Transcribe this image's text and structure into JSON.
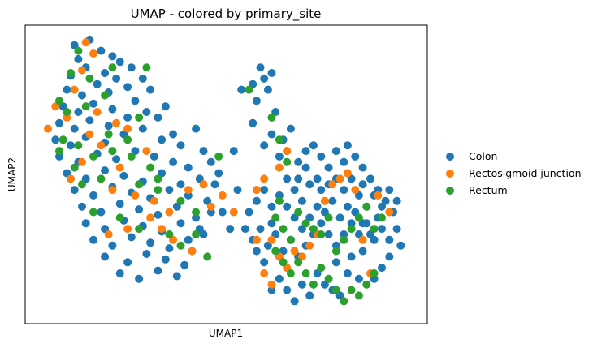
{
  "chart_data": {
    "type": "scatter",
    "title": "UMAP - colored by primary_site",
    "xlabel": "UMAP1",
    "ylabel": "UMAP2",
    "xlim": [
      0,
      100
    ],
    "ylim": [
      0,
      100
    ],
    "grid": false,
    "ticks_shown": false,
    "legend_placement": "right-outside",
    "series": [
      {
        "name": "Colon",
        "color": "#1f77b4",
        "points": [
          [
            10,
            96
          ],
          [
            14,
            98
          ],
          [
            17,
            94
          ],
          [
            11,
            91
          ],
          [
            20,
            92
          ],
          [
            13,
            88
          ],
          [
            18,
            86
          ],
          [
            22,
            90
          ],
          [
            9,
            85
          ],
          [
            16,
            82
          ],
          [
            21,
            84
          ],
          [
            25,
            88
          ],
          [
            8,
            80
          ],
          [
            12,
            78
          ],
          [
            19,
            79
          ],
          [
            24,
            81
          ],
          [
            28,
            84
          ],
          [
            7,
            74
          ],
          [
            11,
            72
          ],
          [
            15,
            75
          ],
          [
            20,
            73
          ],
          [
            26,
            76
          ],
          [
            30,
            80
          ],
          [
            32,
            70
          ],
          [
            6,
            68
          ],
          [
            10,
            66
          ],
          [
            14,
            69
          ],
          [
            19,
            67
          ],
          [
            24,
            70
          ],
          [
            29,
            72
          ],
          [
            34,
            74
          ],
          [
            36,
            64
          ],
          [
            5,
            62
          ],
          [
            9,
            60
          ],
          [
            13,
            63
          ],
          [
            18,
            61
          ],
          [
            23,
            64
          ],
          [
            28,
            66
          ],
          [
            33,
            62
          ],
          [
            38,
            60
          ],
          [
            42,
            66
          ],
          [
            6,
            56
          ],
          [
            11,
            54
          ],
          [
            16,
            57
          ],
          [
            21,
            55
          ],
          [
            26,
            58
          ],
          [
            31,
            56
          ],
          [
            36,
            54
          ],
          [
            40,
            52
          ],
          [
            44,
            58
          ],
          [
            8,
            50
          ],
          [
            13,
            48
          ],
          [
            18,
            51
          ],
          [
            23,
            49
          ],
          [
            28,
            47
          ],
          [
            33,
            50
          ],
          [
            38,
            46
          ],
          [
            43,
            48
          ],
          [
            46,
            54
          ],
          [
            10,
            44
          ],
          [
            15,
            42
          ],
          [
            20,
            45
          ],
          [
            25,
            43
          ],
          [
            30,
            41
          ],
          [
            35,
            44
          ],
          [
            40,
            42
          ],
          [
            45,
            40
          ],
          [
            47,
            46
          ],
          [
            12,
            38
          ],
          [
            17,
            36
          ],
          [
            22,
            39
          ],
          [
            27,
            37
          ],
          [
            32,
            35
          ],
          [
            37,
            38
          ],
          [
            42,
            34
          ],
          [
            13,
            32
          ],
          [
            18,
            30
          ],
          [
            23,
            33
          ],
          [
            28,
            31
          ],
          [
            33,
            29
          ],
          [
            38,
            32
          ],
          [
            43,
            30
          ],
          [
            15,
            26
          ],
          [
            20,
            24
          ],
          [
            25,
            27
          ],
          [
            30,
            25
          ],
          [
            35,
            23
          ],
          [
            40,
            26
          ],
          [
            18,
            20
          ],
          [
            24,
            18
          ],
          [
            29,
            21
          ],
          [
            34,
            19
          ],
          [
            39,
            17
          ],
          [
            22,
            14
          ],
          [
            27,
            12
          ],
          [
            32,
            15
          ],
          [
            37,
            13
          ],
          [
            41,
            22
          ],
          [
            44,
            28
          ],
          [
            46,
            36
          ],
          [
            48,
            50
          ],
          [
            52,
            58
          ],
          [
            53,
            44
          ],
          [
            49,
            36
          ],
          [
            51,
            30
          ],
          [
            54,
            80
          ],
          [
            57,
            82
          ],
          [
            58,
            76
          ],
          [
            59,
            88
          ],
          [
            60,
            84
          ],
          [
            62,
            86
          ],
          [
            61,
            80
          ],
          [
            63,
            72
          ],
          [
            57,
            68
          ],
          [
            60,
            60
          ],
          [
            62,
            64
          ],
          [
            65,
            62
          ],
          [
            67,
            66
          ],
          [
            64,
            56
          ],
          [
            66,
            58
          ],
          [
            69,
            54
          ],
          [
            71,
            58
          ],
          [
            73,
            60
          ],
          [
            75,
            56
          ],
          [
            77,
            52
          ],
          [
            79,
            58
          ],
          [
            81,
            54
          ],
          [
            82,
            60
          ],
          [
            84,
            56
          ],
          [
            86,
            52
          ],
          [
            88,
            48
          ],
          [
            90,
            44
          ],
          [
            92,
            40
          ],
          [
            94,
            36
          ],
          [
            95,
            30
          ],
          [
            96,
            24
          ],
          [
            93,
            20
          ],
          [
            91,
            16
          ],
          [
            89,
            12
          ],
          [
            85,
            12
          ],
          [
            82,
            14
          ],
          [
            79,
            18
          ],
          [
            83,
            20
          ],
          [
            86,
            22
          ],
          [
            88,
            28
          ],
          [
            90,
            34
          ],
          [
            87,
            38
          ],
          [
            85,
            42
          ],
          [
            81,
            44
          ],
          [
            78,
            40
          ],
          [
            75,
            44
          ],
          [
            72,
            46
          ],
          [
            70,
            40
          ],
          [
            68,
            44
          ],
          [
            66,
            48
          ],
          [
            64,
            42
          ],
          [
            62,
            38
          ],
          [
            60,
            44
          ],
          [
            58,
            40
          ],
          [
            56,
            36
          ],
          [
            55,
            30
          ],
          [
            57,
            26
          ],
          [
            59,
            30
          ],
          [
            61,
            24
          ],
          [
            63,
            28
          ],
          [
            65,
            22
          ],
          [
            67,
            26
          ],
          [
            69,
            20
          ],
          [
            71,
            24
          ],
          [
            73,
            28
          ],
          [
            75,
            32
          ],
          [
            77,
            28
          ],
          [
            79,
            24
          ],
          [
            81,
            28
          ],
          [
            83,
            32
          ],
          [
            85,
            28
          ],
          [
            87,
            32
          ],
          [
            89,
            26
          ],
          [
            91,
            30
          ],
          [
            93,
            26
          ],
          [
            68,
            34
          ],
          [
            70,
            30
          ],
          [
            72,
            34
          ],
          [
            74,
            38
          ],
          [
            76,
            36
          ],
          [
            80,
            34
          ],
          [
            82,
            38
          ],
          [
            84,
            36
          ],
          [
            86,
            32
          ],
          [
            64,
            12
          ],
          [
            66,
            8
          ],
          [
            68,
            4
          ],
          [
            62,
            8
          ],
          [
            70,
            10
          ],
          [
            72,
            6
          ],
          [
            74,
            14
          ],
          [
            76,
            10
          ],
          [
            78,
            8
          ],
          [
            80,
            6
          ],
          [
            66,
            16
          ],
          [
            60,
            18
          ],
          [
            58,
            22
          ],
          [
            62,
            32
          ],
          [
            66,
            38
          ],
          [
            69,
            48
          ],
          [
            71,
            52
          ],
          [
            74,
            48
          ],
          [
            77,
            46
          ],
          [
            79,
            48
          ],
          [
            83,
            48
          ],
          [
            86,
            46
          ],
          [
            89,
            42
          ],
          [
            91,
            38
          ],
          [
            93,
            44
          ],
          [
            95,
            40
          ]
        ]
      },
      {
        "name": "Rectosigmoid junction",
        "color": "#ff7f0e",
        "points": [
          [
            13,
            97
          ],
          [
            15,
            93
          ],
          [
            12,
            87
          ],
          [
            10,
            80
          ],
          [
            5,
            74
          ],
          [
            8,
            70
          ],
          [
            16,
            72
          ],
          [
            21,
            68
          ],
          [
            3,
            66
          ],
          [
            14,
            64
          ],
          [
            24,
            66
          ],
          [
            29,
            58
          ],
          [
            17,
            60
          ],
          [
            12,
            54
          ],
          [
            22,
            52
          ],
          [
            9,
            48
          ],
          [
            20,
            44
          ],
          [
            26,
            42
          ],
          [
            31,
            40
          ],
          [
            35,
            36
          ],
          [
            40,
            44
          ],
          [
            44,
            46
          ],
          [
            30,
            34
          ],
          [
            33,
            30
          ],
          [
            36,
            26
          ],
          [
            41,
            22
          ],
          [
            46,
            38
          ],
          [
            49,
            42
          ],
          [
            52,
            36
          ],
          [
            19,
            28
          ],
          [
            24,
            30
          ],
          [
            58,
            44
          ],
          [
            60,
            48
          ],
          [
            62,
            26
          ],
          [
            64,
            20
          ],
          [
            66,
            16
          ],
          [
            68,
            22
          ],
          [
            60,
            14
          ],
          [
            62,
            10
          ],
          [
            70,
            20
          ],
          [
            72,
            24
          ],
          [
            74,
            28
          ],
          [
            76,
            40
          ],
          [
            78,
            46
          ],
          [
            80,
            48
          ],
          [
            82,
            50
          ],
          [
            84,
            44
          ],
          [
            86,
            26
          ],
          [
            88,
            14
          ],
          [
            90,
            42
          ],
          [
            93,
            36
          ],
          [
            58,
            26
          ],
          [
            64,
            52
          ],
          [
            66,
            58
          ]
        ]
      },
      {
        "name": "Rectum",
        "color": "#2ca02c",
        "points": [
          [
            11,
            94
          ],
          [
            9,
            86
          ],
          [
            14,
            84
          ],
          [
            20,
            88
          ],
          [
            29,
            88
          ],
          [
            6,
            76
          ],
          [
            8,
            72
          ],
          [
            13,
            74
          ],
          [
            18,
            78
          ],
          [
            7,
            62
          ],
          [
            11,
            60
          ],
          [
            19,
            64
          ],
          [
            24,
            62
          ],
          [
            27,
            70
          ],
          [
            6,
            58
          ],
          [
            10,
            52
          ],
          [
            15,
            56
          ],
          [
            20,
            58
          ],
          [
            25,
            56
          ],
          [
            30,
            52
          ],
          [
            32,
            48
          ],
          [
            12,
            46
          ],
          [
            17,
            48
          ],
          [
            27,
            46
          ],
          [
            32,
            44
          ],
          [
            38,
            40
          ],
          [
            42,
            36
          ],
          [
            15,
            36
          ],
          [
            22,
            34
          ],
          [
            27,
            30
          ],
          [
            35,
            28
          ],
          [
            38,
            24
          ],
          [
            42,
            28
          ],
          [
            45,
            20
          ],
          [
            48,
            56
          ],
          [
            56,
            80
          ],
          [
            62,
            70
          ],
          [
            64,
            62
          ],
          [
            66,
            54
          ],
          [
            64,
            40
          ],
          [
            63,
            34
          ],
          [
            65,
            30
          ],
          [
            67,
            26
          ],
          [
            69,
            36
          ],
          [
            71,
            32
          ],
          [
            73,
            30
          ],
          [
            75,
            28
          ],
          [
            77,
            34
          ],
          [
            79,
            22
          ],
          [
            81,
            26
          ],
          [
            83,
            30
          ],
          [
            85,
            34
          ],
          [
            87,
            38
          ],
          [
            89,
            30
          ],
          [
            91,
            34
          ],
          [
            63,
            22
          ],
          [
            65,
            18
          ],
          [
            67,
            14
          ],
          [
            69,
            18
          ],
          [
            71,
            14
          ],
          [
            73,
            10
          ],
          [
            75,
            16
          ],
          [
            77,
            12
          ],
          [
            79,
            8
          ],
          [
            81,
            4
          ],
          [
            83,
            8
          ],
          [
            85,
            6
          ],
          [
            87,
            10
          ],
          [
            89,
            14
          ]
        ]
      }
    ]
  }
}
